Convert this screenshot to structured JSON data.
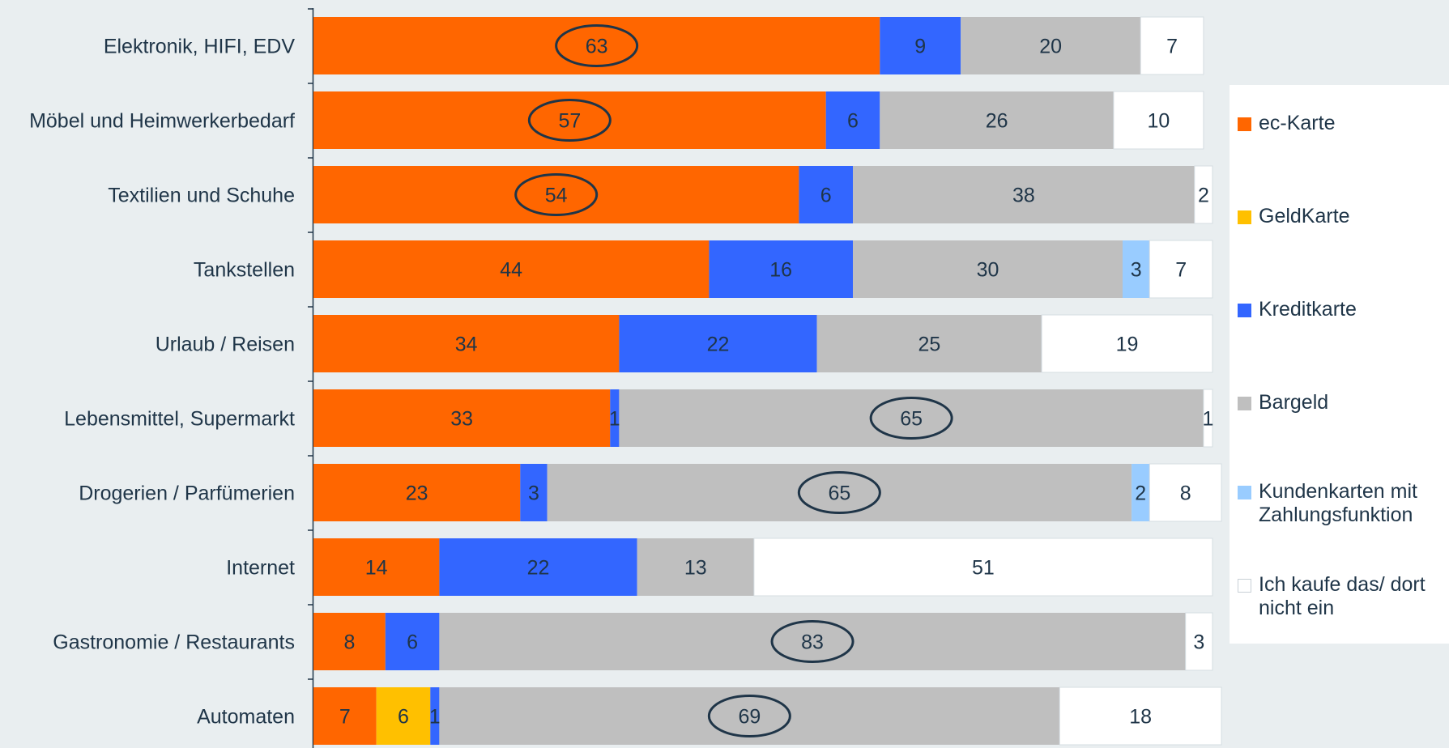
{
  "chart_data": {
    "type": "bar",
    "orientation": "horizontal",
    "stacked": true,
    "categories": [
      "Elektronik, HIFI, EDV",
      "Möbel und Heimwerkerbedarf",
      "Textilien und Schuhe",
      "Tankstellen",
      "Urlaub / Reisen",
      "Lebensmittel, Supermarkt",
      "Drogerien / Parfümerien",
      "Internet",
      "Gastronomie / Restaurants",
      "Automaten"
    ],
    "series": [
      {
        "name": "ec-Karte",
        "color": "#ff6600",
        "values": [
          63,
          57,
          54,
          44,
          34,
          33,
          23,
          14,
          8,
          7
        ]
      },
      {
        "name": "GeldKarte",
        "color": "#ffc000",
        "values": [
          0,
          0,
          0,
          0,
          0,
          0,
          0,
          0,
          0,
          6
        ]
      },
      {
        "name": "Kreditkarte",
        "color": "#3366ff",
        "values": [
          9,
          6,
          6,
          16,
          22,
          1,
          3,
          22,
          6,
          1
        ]
      },
      {
        "name": "Bargeld",
        "color": "#bfbfbf",
        "values": [
          20,
          26,
          38,
          30,
          25,
          65,
          65,
          13,
          83,
          69
        ]
      },
      {
        "name": "Kundenkarten mit Zahlungsfunktion",
        "color": "#99ccff",
        "values": [
          0,
          0,
          0,
          3,
          0,
          0,
          2,
          0,
          0,
          0
        ]
      },
      {
        "name": "Ich kaufe das/ dort nicht ein",
        "color": "#ffffff",
        "values": [
          7,
          10,
          2,
          7,
          19,
          1,
          8,
          51,
          3,
          18
        ]
      }
    ],
    "highlighted": [
      {
        "category": "Elektronik, HIFI, EDV",
        "series": "ec-Karte"
      },
      {
        "category": "Möbel und Heimwerkerbedarf",
        "series": "ec-Karte"
      },
      {
        "category": "Textilien und Schuhe",
        "series": "ec-Karte"
      },
      {
        "category": "Lebensmittel, Supermarkt",
        "series": "Bargeld"
      },
      {
        "category": "Drogerien / Parfümerien",
        "series": "Bargeld"
      },
      {
        "category": "Gastronomie / Restaurants",
        "series": "Bargeld"
      },
      {
        "category": "Automaten",
        "series": "Bargeld"
      }
    ],
    "xlim": [
      0,
      99
    ],
    "legend_position": "right"
  },
  "colors": {
    "background": "#e9eef0",
    "text": "#1f3548",
    "highlight_ring": "#1f3548"
  }
}
